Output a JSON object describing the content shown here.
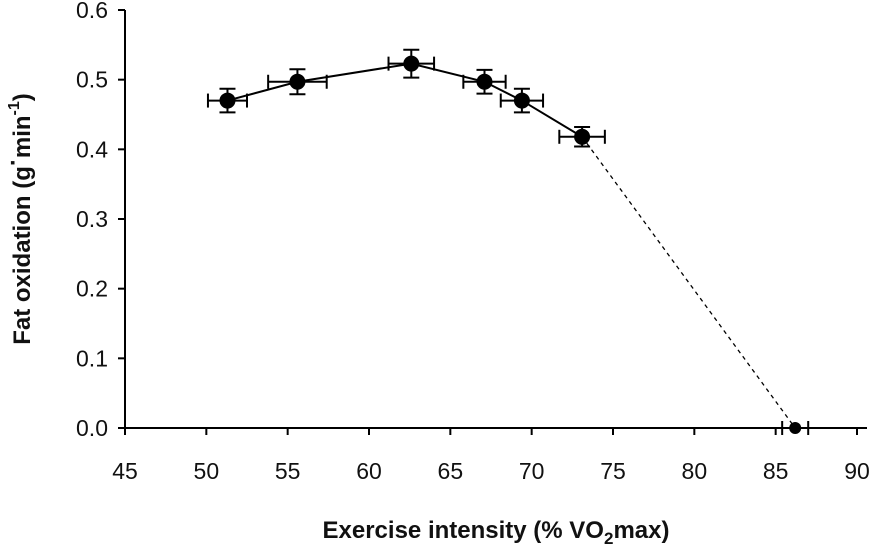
{
  "chart_data": {
    "type": "scatter",
    "title": "",
    "xlabel": {
      "pre": "Exercise intensity (% VO",
      "sub": "2",
      "post": "max)"
    },
    "ylabel": {
      "pre": "Fat oxidation (g",
      "dot": "·",
      "mid": "min",
      "sup": "-1",
      "post": ")"
    },
    "xlim": [
      45,
      90
    ],
    "ylim": [
      0.0,
      0.6
    ],
    "x_ticks": [
      45,
      50,
      55,
      60,
      65,
      70,
      75,
      80,
      85,
      90
    ],
    "y_ticks": [
      "0.0",
      "0.1",
      "0.2",
      "0.3",
      "0.4",
      "0.5",
      "0.6"
    ],
    "grid": false,
    "series": [
      {
        "line_style": "solid",
        "points": [
          {
            "x": 51.3,
            "y": 0.47,
            "x_err": 1.2,
            "y_err": 0.017
          },
          {
            "x": 55.6,
            "y": 0.497,
            "x_err": 1.8,
            "y_err": 0.018
          },
          {
            "x": 62.6,
            "y": 0.523,
            "x_err": 1.4,
            "y_err": 0.02
          },
          {
            "x": 67.1,
            "y": 0.497,
            "x_err": 1.3,
            "y_err": 0.017
          },
          {
            "x": 69.4,
            "y": 0.47,
            "x_err": 1.3,
            "y_err": 0.017
          },
          {
            "x": 73.1,
            "y": 0.418,
            "x_err": 1.4,
            "y_err": 0.014
          }
        ]
      },
      {
        "line_style": "dashed",
        "points": [
          {
            "x": 73.1,
            "y": 0.418
          },
          {
            "x": 86.2,
            "y": 0.0,
            "x_err": 0.8
          }
        ]
      }
    ]
  }
}
